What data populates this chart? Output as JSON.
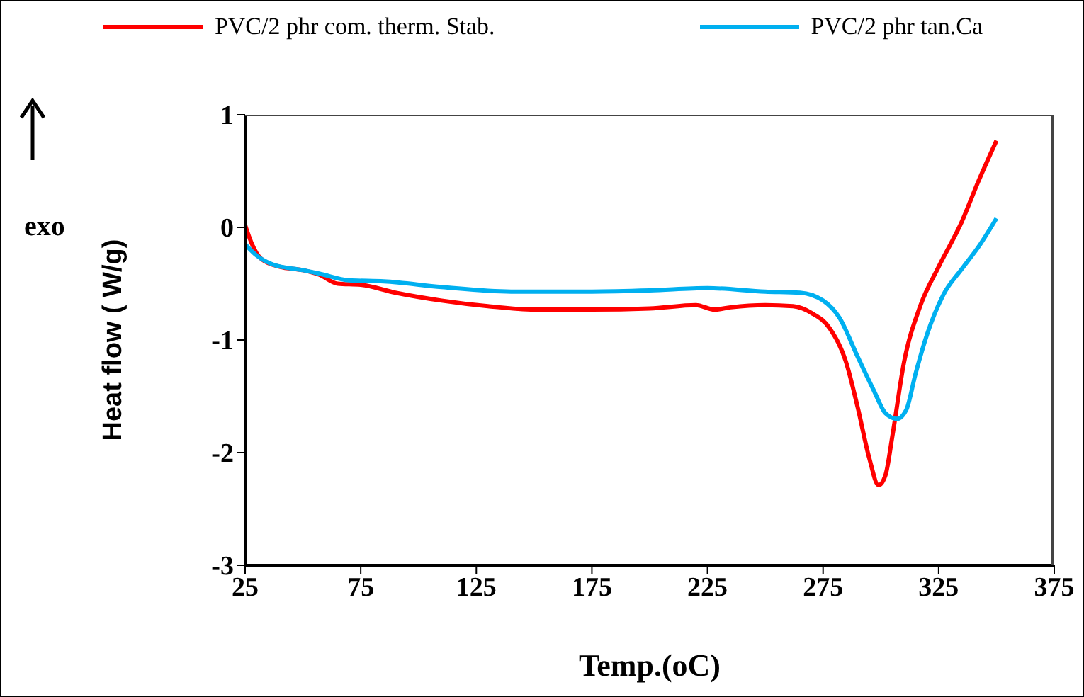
{
  "chart_data": {
    "type": "line",
    "xlabel": "Temp.(oC)",
    "ylabel": "Heat flow ( W/g)",
    "annotations": [
      "exo"
    ],
    "xlim": [
      25,
      375
    ],
    "xticks": [
      25,
      75,
      125,
      175,
      225,
      275,
      325,
      375
    ],
    "ylim": [
      -3,
      1
    ],
    "yticks": [
      -3,
      -2,
      -1,
      0,
      1
    ],
    "grid": false,
    "legend": "top",
    "marker": "none",
    "series": [
      {
        "name": "PVC/2 phr com. therm. Stab.",
        "color": "#ff0000",
        "line_style": "solid",
        "x": [
          25,
          28,
          32,
          40,
          50,
          57,
          65,
          75,
          90,
          110,
          130,
          150,
          175,
          200,
          220,
          228,
          235,
          250,
          262,
          270,
          278,
          285,
          290,
          295,
          299,
          302,
          305,
          310,
          317,
          325,
          335,
          342,
          350
        ],
        "values": [
          0.02,
          -0.15,
          -0.28,
          -0.35,
          -0.38,
          -0.42,
          -0.5,
          -0.51,
          -0.58,
          -0.65,
          -0.7,
          -0.73,
          -0.73,
          -0.72,
          -0.69,
          -0.73,
          -0.71,
          -0.69,
          -0.7,
          -0.76,
          -0.9,
          -1.2,
          -1.6,
          -2.05,
          -2.29,
          -2.2,
          -1.85,
          -1.2,
          -0.7,
          -0.35,
          0.05,
          0.4,
          0.77
        ]
      },
      {
        "name": "PVC/2 phr tan.Ca",
        "color": "#00b0f0",
        "line_style": "solid",
        "x": [
          25,
          30,
          37,
          50,
          57,
          70,
          85,
          110,
          140,
          175,
          200,
          225,
          250,
          265,
          275,
          282,
          290,
          297,
          302,
          307,
          311,
          315,
          320,
          327,
          335,
          343,
          350
        ],
        "values": [
          -0.15,
          -0.25,
          -0.33,
          -0.38,
          -0.41,
          -0.47,
          -0.48,
          -0.53,
          -0.57,
          -0.57,
          -0.56,
          -0.54,
          -0.57,
          -0.58,
          -0.65,
          -0.8,
          -1.15,
          -1.45,
          -1.65,
          -1.7,
          -1.62,
          -1.3,
          -0.95,
          -0.6,
          -0.37,
          -0.15,
          0.08
        ]
      }
    ]
  }
}
